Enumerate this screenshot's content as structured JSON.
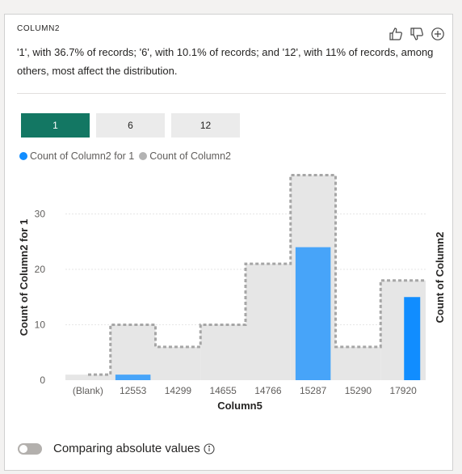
{
  "card": {
    "title": "COLUMN2",
    "description": "'1', with 36.7% of records; '6', with 10.1% of records; and '12', with 11% of records, among others, most affect the distribution."
  },
  "tabs": [
    {
      "label": "1",
      "active": true
    },
    {
      "label": "6",
      "active": false
    },
    {
      "label": "12",
      "active": false
    }
  ],
  "legend": [
    {
      "label": "Count of Column2 for 1",
      "color": "#118dff"
    },
    {
      "label": "Count of Column2",
      "color": "#b3b3b3"
    }
  ],
  "footer": {
    "label": "Comparing absolute values"
  },
  "icons": [
    "thumbs-up-icon",
    "thumbs-down-icon",
    "add-icon",
    "info-icon"
  ],
  "chart_data": {
    "type": "bar",
    "categories": [
      "(Blank)",
      "12553",
      "14299",
      "14655",
      "14766",
      "15287",
      "15290",
      "17920"
    ],
    "series": [
      {
        "name": "Count of Column2",
        "values": [
          1,
          10,
          6,
          10,
          21,
          37,
          6,
          18
        ],
        "color": "#e6e6e6"
      },
      {
        "name": "Count of Column2 for 1",
        "values": [
          0,
          1,
          0,
          0,
          0,
          24,
          0,
          15
        ],
        "color": "#118dff"
      }
    ],
    "xlabel": "Column5",
    "ylabel": "Count of Column2 for 1",
    "ylabel_right": "Count of Column2",
    "yticks": [
      0,
      10,
      20,
      30
    ],
    "ylim": [
      0,
      40
    ],
    "grid": true
  }
}
